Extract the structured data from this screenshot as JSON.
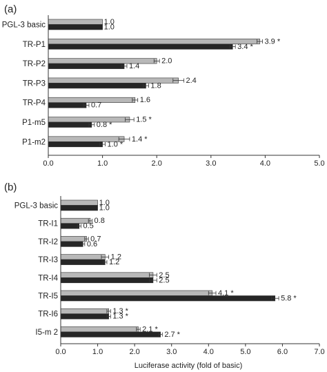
{
  "figure": {
    "xlabel": "Luciferase activity (fold of basic)"
  },
  "colors": {
    "light_bar": "#b8b8b8",
    "dark_bar": "#262626",
    "axis": "#333333",
    "error": "#333333"
  },
  "chart_data": [
    {
      "panel": "(a)",
      "type": "bar",
      "orientation": "horizontal",
      "categories": [
        "PGL-3 basic",
        "TR-P1",
        "TR-P2",
        "TR-P3",
        "TR-P4",
        "P1-m5",
        "P1-m2"
      ],
      "series": [
        {
          "values": [
            1.0,
            3.9,
            2.0,
            2.4,
            1.6,
            1.5,
            1.4
          ],
          "errors": [
            0.0,
            0.05,
            0.05,
            0.1,
            0.05,
            0.08,
            0.1
          ],
          "labels": [
            "1.0",
            "3.9 *",
            "2.0",
            "2.4",
            "1.6",
            "1.5 *",
            "1.4 *"
          ]
        },
        {
          "values": [
            1.0,
            3.4,
            1.4,
            1.8,
            0.7,
            0.8,
            1.0
          ],
          "errors": [
            0.0,
            0.05,
            0.05,
            0.05,
            0.05,
            0.05,
            0.05
          ],
          "labels": [
            "1.0",
            "3.4 *",
            "1.4",
            "1.8",
            "0.7",
            "0.8 *",
            "1.0 *"
          ]
        }
      ],
      "xlim": [
        0,
        5
      ],
      "xticks": [
        "0.0",
        "1.0",
        "2.0",
        "3.0",
        "4.0",
        "5.0"
      ],
      "grid": false
    },
    {
      "panel": "(b)",
      "type": "bar",
      "orientation": "horizontal",
      "categories": [
        "PGL-3 basic",
        "TR-I1",
        "TR-I2",
        "TR-I3",
        "TR-I4",
        "TR-I5",
        "TR-I6",
        "I5-m 2"
      ],
      "series": [
        {
          "values": [
            1.0,
            0.8,
            0.7,
            1.2,
            2.5,
            4.1,
            1.3,
            2.1
          ],
          "errors": [
            0.0,
            0.05,
            0.05,
            0.1,
            0.1,
            0.1,
            0.05,
            0.05
          ],
          "labels": [
            "1.0",
            "0.8",
            "0.7",
            "1.2",
            "2.5",
            "4.1 *",
            "1.3 *",
            "2.1 *"
          ]
        },
        {
          "values": [
            1.0,
            0.5,
            0.6,
            1.2,
            2.5,
            5.8,
            1.3,
            2.7
          ],
          "errors": [
            0.0,
            0.05,
            0.05,
            0.05,
            0.1,
            0.1,
            0.05,
            0.05
          ],
          "labels": [
            "1.0",
            "0.5",
            "0.6",
            "1.2",
            "2.5",
            "5.8 *",
            "1.3 *",
            "2.7 *"
          ]
        }
      ],
      "xlim": [
        0,
        7
      ],
      "xticks": [
        "0.0",
        "1.0",
        "2.0",
        "3.0",
        "4.0",
        "5.0",
        "6.0",
        "7.0"
      ],
      "grid": false
    }
  ]
}
